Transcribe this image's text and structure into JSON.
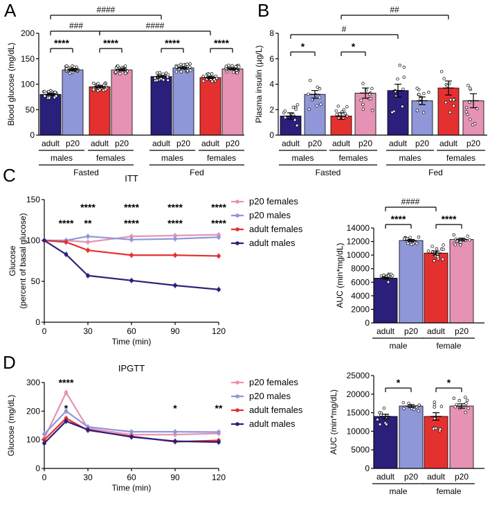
{
  "panels": {
    "a": "A",
    "b": "B",
    "c": "C",
    "d": "D"
  },
  "colors": {
    "adult_males": "#2a1f7a",
    "p20_males": "#8f97d8",
    "adult_females": "#e53030",
    "p20_females": "#e592b4"
  },
  "chart_data": [
    {
      "id": "A",
      "type": "bar",
      "ylabel": "Blood glucose (mg/dL)",
      "ylim": [
        0,
        200
      ],
      "yticks": [
        0,
        50,
        100,
        150,
        200
      ],
      "categories": [
        "adult",
        "p20",
        "adult",
        "p20",
        "adult",
        "p20",
        "adult",
        "p20"
      ],
      "values": [
        80,
        128,
        95,
        128,
        115,
        132,
        113,
        130
      ],
      "errors": [
        2,
        2,
        2,
        2,
        2,
        2,
        2,
        2
      ],
      "colorKeys": [
        "adult_males",
        "p20_males",
        "adult_females",
        "p20_females",
        "adult_males",
        "p20_males",
        "adult_females",
        "p20_females"
      ],
      "sex_labels": [
        "males",
        "females",
        "males",
        "females"
      ],
      "state_labels": [
        "Fasted",
        "Fed"
      ],
      "within_stars": [
        "****",
        "****",
        "****",
        "****"
      ],
      "hash_labels": [
        "####",
        "###",
        "####"
      ]
    },
    {
      "id": "B",
      "type": "bar",
      "ylabel": "Plasma insulin (µg/L)",
      "ylim": [
        0,
        8
      ],
      "yticks": [
        0,
        2,
        4,
        6,
        8
      ],
      "categories": [
        "adult",
        "p20",
        "adult",
        "p20",
        "adult",
        "p20",
        "adult",
        "p20"
      ],
      "values": [
        1.5,
        3.2,
        1.5,
        3.3,
        3.5,
        2.7,
        3.7,
        2.7
      ],
      "errors": [
        0.25,
        0.3,
        0.25,
        0.4,
        0.5,
        0.3,
        0.55,
        0.55
      ],
      "colorKeys": [
        "adult_males",
        "p20_males",
        "adult_females",
        "p20_females",
        "adult_males",
        "p20_males",
        "adult_females",
        "p20_females"
      ],
      "sex_labels": [
        "males",
        "females",
        "males",
        "females"
      ],
      "state_labels": [
        "Fasted",
        "Fed"
      ],
      "within_stars": [
        "*",
        "*"
      ],
      "hash_labels": [
        "##",
        "#"
      ]
    },
    {
      "id": "C-line",
      "type": "line",
      "title": "ITT",
      "xlabel": "Time (min)",
      "ylabel": [
        "Glucose",
        "(percent of basal glucose)"
      ],
      "xlim": [
        0,
        120
      ],
      "ylim": [
        0,
        150
      ],
      "xticks": [
        0,
        30,
        60,
        90,
        120
      ],
      "yticks": [
        0,
        50,
        100,
        150
      ],
      "x": [
        0,
        15,
        30,
        60,
        90,
        120
      ],
      "series": [
        {
          "name": "p20 females",
          "colorKey": "p20_females",
          "values": [
            100,
            100,
            98,
            105,
            106,
            107
          ]
        },
        {
          "name": "p20 males",
          "colorKey": "p20_males",
          "values": [
            100,
            100,
            105,
            101,
            102,
            104
          ]
        },
        {
          "name": "adult females",
          "colorKey": "adult_females",
          "values": [
            100,
            98,
            88,
            82,
            82,
            81
          ]
        },
        {
          "name": "adult males",
          "colorKey": "adult_males",
          "values": [
            100,
            83,
            57,
            51,
            45,
            40
          ]
        }
      ],
      "annotations": [
        {
          "text": "****",
          "x": 15,
          "row": 2,
          "colorKey": "p20_males"
        },
        {
          "text": "****",
          "x": 30,
          "row": 1,
          "colorKey": "p20_males"
        },
        {
          "text": "**",
          "x": 30,
          "row": 2,
          "colorKey": "p20_females"
        },
        {
          "text": "****",
          "x": 60,
          "row": 1,
          "colorKey": "p20_females"
        },
        {
          "text": "****",
          "x": 60,
          "row": 2,
          "colorKey": "p20_males"
        },
        {
          "text": "****",
          "x": 90,
          "row": 1,
          "colorKey": "p20_females"
        },
        {
          "text": "****",
          "x": 90,
          "row": 2,
          "colorKey": "p20_males"
        },
        {
          "text": "****",
          "x": 120,
          "row": 1,
          "colorKey": "p20_females"
        },
        {
          "text": "****",
          "x": 120,
          "row": 2,
          "colorKey": "p20_males"
        }
      ]
    },
    {
      "id": "C-bar",
      "type": "bar",
      "ylabel": "AUC (min*mg/dL)",
      "ylim": [
        0,
        14000
      ],
      "yticks": [
        0,
        2000,
        4000,
        6000,
        8000,
        10000,
        12000,
        14000
      ],
      "categories": [
        "adult",
        "p20",
        "adult",
        "p20"
      ],
      "values": [
        6600,
        12150,
        10300,
        12300
      ],
      "errors": [
        150,
        150,
        300,
        200
      ],
      "colorKeys": [
        "adult_males",
        "p20_males",
        "adult_females",
        "p20_females"
      ],
      "sex_labels": [
        "male",
        "female"
      ],
      "within_stars": [
        "****",
        "****"
      ],
      "hash_labels": [
        "####"
      ]
    },
    {
      "id": "D-line",
      "type": "line",
      "title": "IPGTT",
      "xlabel": "Time (min)",
      "ylabel": [
        "Glucose (mg/dL)"
      ],
      "xlim": [
        0,
        120
      ],
      "ylim": [
        0,
        300
      ],
      "xticks": [
        0,
        30,
        60,
        90,
        120
      ],
      "yticks": [
        0,
        100,
        200,
        300
      ],
      "x": [
        0,
        15,
        30,
        60,
        90,
        120
      ],
      "series": [
        {
          "name": "p20 females",
          "colorKey": "p20_females",
          "values": [
            105,
            265,
            140,
            118,
            118,
            122
          ]
        },
        {
          "name": "p20 males",
          "colorKey": "p20_males",
          "values": [
            120,
            200,
            145,
            128,
            128,
            127
          ]
        },
        {
          "name": "adult females",
          "colorKey": "adult_females",
          "values": [
            100,
            175,
            133,
            112,
            93,
            98
          ]
        },
        {
          "name": "adult males",
          "colorKey": "adult_males",
          "values": [
            88,
            165,
            135,
            110,
            95,
            92
          ]
        }
      ],
      "annotations": [
        {
          "text": "****",
          "x": 15,
          "row": 1,
          "colorKey": "p20_females"
        },
        {
          "text": "*",
          "x": 15,
          "row": 2,
          "colorKey": "p20_males"
        },
        {
          "text": "*",
          "x": 90,
          "row": 2,
          "colorKey": "p20_males"
        },
        {
          "text": "**",
          "x": 120,
          "row": 2,
          "colorKey": "p20_males"
        }
      ]
    },
    {
      "id": "D-bar",
      "type": "bar",
      "ylabel": "AUC (min*mg/dL)",
      "ylim": [
        0,
        25000
      ],
      "yticks": [
        0,
        5000,
        10000,
        15000,
        20000,
        25000
      ],
      "categories": [
        "adult",
        "p20",
        "adult",
        "p20"
      ],
      "values": [
        14000,
        16800,
        14000,
        16800
      ],
      "errors": [
        600,
        400,
        1000,
        600
      ],
      "colorKeys": [
        "adult_males",
        "p20_males",
        "adult_females",
        "p20_females"
      ],
      "sex_labels": [
        "male",
        "female"
      ],
      "within_stars": [
        "*",
        "*"
      ]
    }
  ]
}
